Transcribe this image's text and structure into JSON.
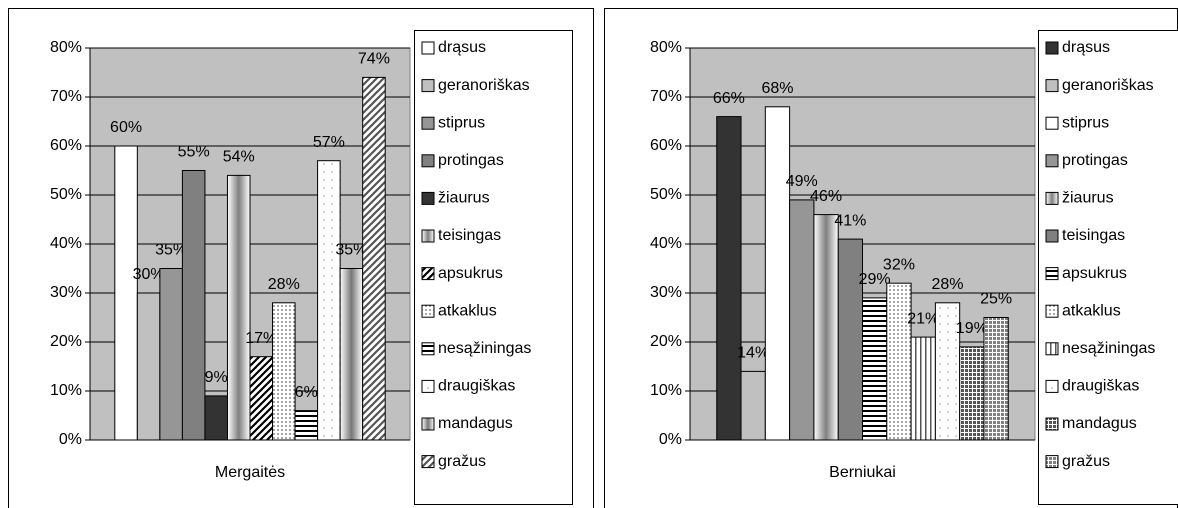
{
  "chart_data": [
    {
      "type": "bar",
      "categories": [
        "Mergaitės"
      ],
      "ylim": [
        0,
        80
      ],
      "yticks": [
        {
          "value": 0,
          "label": "0%"
        },
        {
          "value": 10,
          "label": "10%"
        },
        {
          "value": 20,
          "label": "20%"
        },
        {
          "value": 30,
          "label": "30%"
        },
        {
          "value": 40,
          "label": "40%"
        },
        {
          "value": 50,
          "label": "50%"
        },
        {
          "value": 60,
          "label": "60%"
        },
        {
          "value": 70,
          "label": "70%"
        },
        {
          "value": 80,
          "label": "80%"
        }
      ],
      "grid": true,
      "plot_color": "#c0c0c0",
      "legend": "right",
      "series": [
        {
          "name": "drąsus",
          "color": "#ffffff",
          "pattern": "solid",
          "values": [
            60
          ],
          "value_labels": [
            "60%"
          ]
        },
        {
          "name": "geranoriškas",
          "color": "#c0c0c0",
          "pattern": "solid",
          "values": [
            30
          ],
          "value_labels": [
            "30%"
          ]
        },
        {
          "name": "stiprus",
          "color": "#969696",
          "pattern": "solid",
          "values": [
            35
          ],
          "value_labels": [
            "35%"
          ]
        },
        {
          "name": "protingas",
          "color": "#808080",
          "pattern": "solid",
          "values": [
            55
          ],
          "value_labels": [
            "55%"
          ]
        },
        {
          "name": "žiaurus",
          "color": "#333333",
          "pattern": "solid",
          "values": [
            9
          ],
          "value_labels": [
            "9%"
          ]
        },
        {
          "name": "teisingas",
          "color": "#808080",
          "pattern": "gradient",
          "values": [
            54
          ],
          "value_labels": [
            "54%"
          ]
        },
        {
          "name": "apsukrus",
          "color": "#000000",
          "pattern": "diagonal",
          "values": [
            17
          ],
          "value_labels": [
            "17%"
          ]
        },
        {
          "name": "atkaklus",
          "color": "#666666",
          "pattern": "dots",
          "values": [
            28
          ],
          "value_labels": [
            "28%"
          ]
        },
        {
          "name": "nesąžiningas",
          "color": "#000000",
          "pattern": "hstripes",
          "values": [
            6
          ],
          "value_labels": [
            "6%"
          ]
        },
        {
          "name": "draugiškas",
          "color": "#999999",
          "pattern": "sparse",
          "values": [
            57
          ],
          "value_labels": [
            "57%"
          ]
        },
        {
          "name": "mandagus",
          "color": "#777777",
          "pattern": "gradient",
          "values": [
            35
          ],
          "value_labels": [
            "35%"
          ]
        },
        {
          "name": "gražus",
          "color": "#555555",
          "pattern": "diagonal",
          "values": [
            74
          ],
          "value_labels": [
            "74%"
          ]
        }
      ]
    },
    {
      "type": "bar",
      "categories": [
        "Berniukai"
      ],
      "ylim": [
        0,
        80
      ],
      "yticks": [
        {
          "value": 0,
          "label": "0%"
        },
        {
          "value": 10,
          "label": "10%"
        },
        {
          "value": 20,
          "label": "20%"
        },
        {
          "value": 30,
          "label": "30%"
        },
        {
          "value": 40,
          "label": "40%"
        },
        {
          "value": 50,
          "label": "50%"
        },
        {
          "value": 60,
          "label": "60%"
        },
        {
          "value": 70,
          "label": "70%"
        },
        {
          "value": 80,
          "label": "80%"
        }
      ],
      "grid": true,
      "plot_color": "#c0c0c0",
      "legend": "right",
      "series": [
        {
          "name": "drąsus",
          "color": "#333333",
          "pattern": "solid",
          "values": [
            66
          ],
          "value_labels": [
            "66%"
          ]
        },
        {
          "name": "geranoriškas",
          "color": "#c0c0c0",
          "pattern": "solid",
          "values": [
            14
          ],
          "value_labels": [
            "14%"
          ]
        },
        {
          "name": "stiprus",
          "color": "#ffffff",
          "pattern": "solid",
          "values": [
            68
          ],
          "value_labels": [
            "68%"
          ]
        },
        {
          "name": "protingas",
          "color": "#969696",
          "pattern": "solid",
          "values": [
            49
          ],
          "value_labels": [
            "49%"
          ]
        },
        {
          "name": "žiaurus",
          "color": "#808080",
          "pattern": "gradient",
          "values": [
            46
          ],
          "value_labels": [
            "46%"
          ]
        },
        {
          "name": "teisingas",
          "color": "#808080",
          "pattern": "solid",
          "values": [
            41
          ],
          "value_labels": [
            "41%"
          ]
        },
        {
          "name": "apsukrus",
          "color": "#000000",
          "pattern": "hstripes",
          "values": [
            29
          ],
          "value_labels": [
            "29%"
          ]
        },
        {
          "name": "atkaklus",
          "color": "#666666",
          "pattern": "dots",
          "values": [
            32
          ],
          "value_labels": [
            "32%"
          ]
        },
        {
          "name": "nesąžiningas",
          "color": "#555555",
          "pattern": "vstripes",
          "values": [
            21
          ],
          "value_labels": [
            "21%"
          ]
        },
        {
          "name": "draugiškas",
          "color": "#999999",
          "pattern": "sparse",
          "values": [
            28
          ],
          "value_labels": [
            "28%"
          ]
        },
        {
          "name": "mandagus",
          "color": "#555555",
          "pattern": "crosshatch",
          "values": [
            19
          ],
          "value_labels": [
            "19%"
          ]
        },
        {
          "name": "gražus",
          "color": "#808080",
          "pattern": "crosshatch",
          "values": [
            25
          ],
          "value_labels": [
            "25%"
          ]
        }
      ]
    }
  ]
}
